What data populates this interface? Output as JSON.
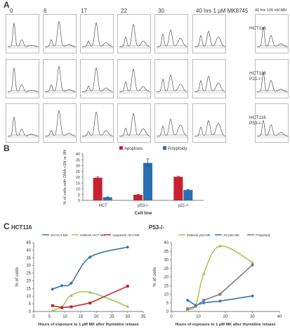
{
  "panel_a": {
    "label": "A",
    "timepoints": [
      "0",
      "6",
      "17",
      "22",
      "30",
      "40 hrs 1 μM MK8745"
    ],
    "extra_header": "40 hrs 100 nM ABI",
    "row_labels": [
      {
        "line1": "HCT116",
        "line2": ""
      },
      {
        "line1": "HCT116",
        "line2": "P21-/-"
      },
      {
        "line1": "HCT116",
        "line2": "P53-/-"
      }
    ]
  },
  "panel_b": {
    "label": "B"
  },
  "panel_c": {
    "label": "C"
  },
  "colors": {
    "apoptosis": "#c8202f",
    "polyploidy": "#2a6fb3",
    "c_2n": "#2e75b6",
    "c_4n": "#9fcc5a",
    "c_apoptosis": "#c0282f",
    "c_poly": "#7f7f7f",
    "histogram": "#555555"
  },
  "chart_data": [
    {
      "type": "bar",
      "categories": [
        "HCT",
        "p53-/-",
        "p21-/-"
      ],
      "series": [
        {
          "name": "Apoptosis",
          "values": [
            19.5,
            4.8,
            20.3
          ],
          "errors": [
            0.8,
            0.4,
            0.4
          ]
        },
        {
          "name": "Polyploidy",
          "values": [
            2.7,
            32.3,
            9.0
          ],
          "errors": [
            0.3,
            3.5,
            0.3
          ]
        }
      ],
      "ylabel": "% of cells with DNA <2N or 8N",
      "xlabel": "Cell line",
      "ylim": [
        0,
        40
      ],
      "yticks": [
        0,
        5,
        10,
        15,
        20,
        25,
        30,
        35,
        40
      ],
      "legend": "top"
    },
    {
      "type": "line",
      "title": "HCT116",
      "series": [
        {
          "name": "2N HCT-MK",
          "x": [
            6,
            9,
            12,
            18,
            30
          ],
          "y": [
            14.5,
            16.8,
            18.5,
            35.5,
            42.0
          ],
          "smooth": true
        },
        {
          "name": "4Nblock HCT-MK",
          "x": [
            6,
            9,
            12,
            18,
            30
          ],
          "y": [
            0.5,
            3.0,
            10.5,
            12.5,
            3.2
          ],
          "smooth": true
        },
        {
          "name": "Apoptosis HCT-MK",
          "x": [
            6,
            9,
            12,
            18,
            30
          ],
          "y": [
            3.8,
            2.5,
            3.0,
            5.5,
            16.5
          ],
          "smooth": false
        }
      ],
      "xlabel": "Hours of exposure to 1 μM MK after thymidine release",
      "ylabel": "% of cells",
      "xlim": [
        0,
        35
      ],
      "ylim": [
        0,
        45
      ],
      "xticks": [
        0,
        5,
        10,
        15,
        20,
        25,
        30,
        35
      ],
      "yticks": [
        0,
        5,
        10,
        15,
        20,
        25,
        30,
        35,
        40,
        45
      ],
      "legend": "top"
    },
    {
      "type": "line",
      "title": "P53-/-",
      "series": [
        {
          "name": "4Nblock p53-MK",
          "x": [
            6,
            9,
            12,
            18,
            30
          ],
          "y": [
            1.2,
            3.5,
            22.0,
            38.0,
            28.5
          ],
          "smooth": true
        },
        {
          "name": "2N p53-MK",
          "x": [
            6,
            9,
            12,
            18,
            30
          ],
          "y": [
            6.5,
            3.5,
            5.0,
            6.0,
            9.0
          ],
          "smooth": false
        },
        {
          "name": "Polyploidy",
          "x": [
            6,
            9,
            12,
            18,
            30
          ],
          "y": [
            1.5,
            3.0,
            6.5,
            10.0,
            27.0
          ],
          "smooth": false
        }
      ],
      "xlabel": "Hours of exposure to 1 μM MK after thymidine release",
      "ylabel": "% of cells",
      "xlim": [
        0,
        40
      ],
      "ylim": [
        0,
        40
      ],
      "xticks": [
        0,
        10,
        20,
        30,
        40
      ],
      "yticks": [
        0,
        5,
        10,
        15,
        20,
        25,
        30,
        35,
        40
      ],
      "legend": "top"
    }
  ]
}
